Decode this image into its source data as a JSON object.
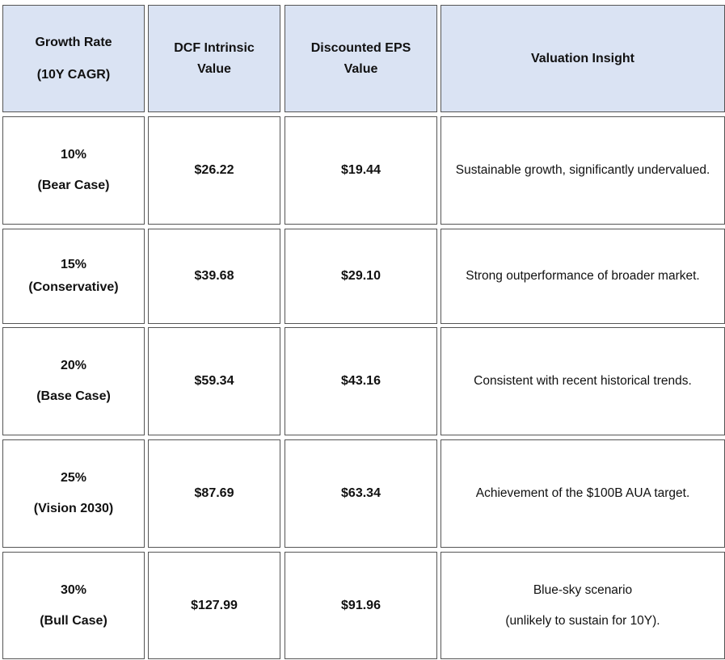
{
  "table": {
    "header": [
      [
        "Growth Rate",
        "(10Y CAGR)"
      ],
      [
        "DCF Intrinsic Value"
      ],
      [
        "Discounted EPS Value"
      ],
      [
        "Valuation Insight"
      ]
    ],
    "rows": [
      [
        [
          "10%",
          "(Bear Case)"
        ],
        [
          "$26.22"
        ],
        [
          "$19.44"
        ],
        [
          "Sustainable growth, significantly undervalued."
        ]
      ],
      [
        [
          "15%",
          "(Conservative)"
        ],
        [
          "$39.68"
        ],
        [
          "$29.10"
        ],
        [
          "Strong outperformance of broader market."
        ]
      ],
      [
        [
          "20%",
          "(Base Case)"
        ],
        [
          "$59.34"
        ],
        [
          "$43.16"
        ],
        [
          "Consistent with recent historical trends."
        ]
      ],
      [
        [
          "25%",
          "(Vision 2030)"
        ],
        [
          "$87.69"
        ],
        [
          "$63.34"
        ],
        [
          "Achievement of the $100B AUA target."
        ]
      ],
      [
        [
          "30%",
          "(Bull Case)"
        ],
        [
          "$127.99"
        ],
        [
          "$91.96"
        ],
        [
          "Blue-sky scenario",
          "(unlikely to sustain for 10Y)."
        ]
      ]
    ]
  }
}
